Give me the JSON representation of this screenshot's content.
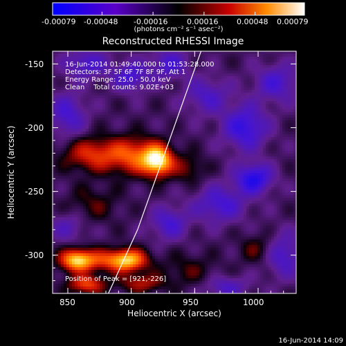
{
  "window": {
    "timestamp": "16-Jun-2014 14:09"
  },
  "colorbar": {
    "tick_labels": [
      "-0.00079",
      "-0.00048",
      "-0.00016",
      "0.00016",
      "0.00048",
      "0.00079"
    ],
    "units": "(photons cm⁻² s⁻¹ asec⁻²)"
  },
  "legend_info": {
    "time_range": "16-Jun-2014 01:49:40.000 to 01:53:28.000",
    "detectors": "Detectors: 3F 5F 6F 7F 8F 9F, Att 1",
    "energy": "Energy Range: 25.0 - 50.0 keV",
    "clean": "Clean    Total counts: 9.02E+03",
    "peak": "Position of Peak = [921,-226]"
  },
  "chart_data": {
    "type": "heatmap",
    "title": "Reconstructed RHESSI Image",
    "xlabel": "Heliocentric X (arcsec)",
    "ylabel": "Heliocentric Y (arcsec)",
    "xlim": [
      838,
      1030
    ],
    "ylim": [
      -330,
      -140
    ],
    "x_ticks": [
      850,
      900,
      950,
      1000
    ],
    "y_ticks": [
      -150,
      -200,
      -250,
      -300
    ],
    "value_range": [
      -0.00079,
      0.00079
    ],
    "peak": {
      "x": 921,
      "y": -226
    },
    "sources": [
      {
        "x": 921,
        "y": -226,
        "amp": 0.00079,
        "sx": 8,
        "sy": 8
      },
      {
        "x": 903,
        "y": -222,
        "amp": 0.00045,
        "sx": 14,
        "sy": 10
      },
      {
        "x": 870,
        "y": -221,
        "amp": 0.0004,
        "sx": 16,
        "sy": 9
      },
      {
        "x": 945,
        "y": -232,
        "amp": 0.0002,
        "sx": 9,
        "sy": 8
      },
      {
        "x": 857,
        "y": -304,
        "amp": 0.00068,
        "sx": 9,
        "sy": 6
      },
      {
        "x": 898,
        "y": -304,
        "amp": 0.00058,
        "sx": 10,
        "sy": 6
      },
      {
        "x": 880,
        "y": -304,
        "amp": 0.00035,
        "sx": 16,
        "sy": 6
      },
      {
        "x": 865,
        "y": -323,
        "amp": 0.00045,
        "sx": 10,
        "sy": 5
      },
      {
        "x": 908,
        "y": -322,
        "amp": 0.0003,
        "sx": 12,
        "sy": 5
      },
      {
        "x": 945,
        "y": -312,
        "amp": 0.00015,
        "sx": 15,
        "sy": 9
      },
      {
        "x": 1000,
        "y": -295,
        "amp": 0.00018,
        "sx": 10,
        "sy": 8
      },
      {
        "x": 870,
        "y": -260,
        "amp": 0.00016,
        "sx": 14,
        "sy": 10
      },
      {
        "x": 990,
        "y": -200,
        "amp": -0.0004,
        "sx": 12,
        "sy": 12
      },
      {
        "x": 997,
        "y": -240,
        "amp": -0.00048,
        "sx": 10,
        "sy": 8
      },
      {
        "x": 1015,
        "y": -165,
        "amp": -0.0003,
        "sx": 12,
        "sy": 10
      },
      {
        "x": 850,
        "y": -190,
        "amp": -0.0003,
        "sx": 10,
        "sy": 12
      },
      {
        "x": 865,
        "y": -150,
        "amp": -0.0003,
        "sx": 12,
        "sy": 8
      },
      {
        "x": 900,
        "y": -160,
        "amp": -0.00032,
        "sx": 10,
        "sy": 8
      },
      {
        "x": 970,
        "y": -260,
        "amp": -0.00032,
        "sx": 14,
        "sy": 10
      },
      {
        "x": 930,
        "y": -150,
        "amp": -0.0003,
        "sx": 10,
        "sy": 8
      },
      {
        "x": 960,
        "y": -175,
        "amp": -0.00026,
        "sx": 12,
        "sy": 10
      },
      {
        "x": 930,
        "y": -275,
        "amp": -0.0003,
        "sx": 10,
        "sy": 9
      },
      {
        "x": 975,
        "y": -325,
        "amp": -0.00025,
        "sx": 12,
        "sy": 6
      },
      {
        "x": 1020,
        "y": -300,
        "amp": -0.0003,
        "sx": 10,
        "sy": 12
      },
      {
        "x": 850,
        "y": -278,
        "amp": -0.0002,
        "sx": 10,
        "sy": 8
      }
    ],
    "limb_curve": [
      [
        955,
        -140
      ],
      [
        930,
        -210
      ],
      [
        905,
        -280
      ],
      [
        882,
        -330
      ]
    ]
  }
}
